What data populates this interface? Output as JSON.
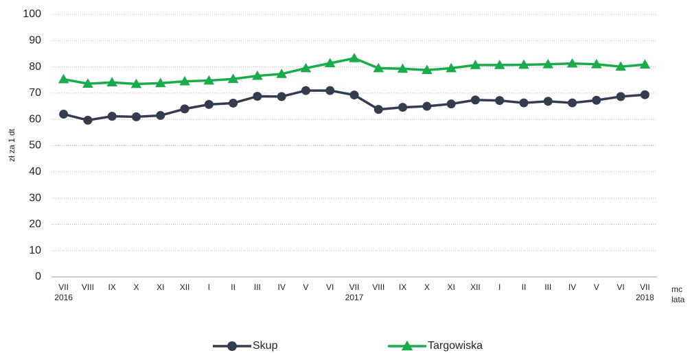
{
  "chart_data": {
    "type": "line",
    "y_label": "zł za 1 dt",
    "x_label": "mc",
    "x_label_secondary": "lata",
    "categories": [
      "VII",
      "VIII",
      "IX",
      "X",
      "XI",
      "XII",
      "I",
      "II",
      "III",
      "IV",
      "V",
      "VI",
      "VII",
      "VIII",
      "IX",
      "X",
      "XI",
      "XII",
      "I",
      "II",
      "III",
      "IV",
      "V",
      "VI",
      "VII"
    ],
    "category_years": [
      "2016",
      null,
      null,
      null,
      null,
      null,
      null,
      null,
      null,
      null,
      null,
      null,
      "2017",
      null,
      null,
      null,
      null,
      null,
      null,
      null,
      null,
      null,
      null,
      null,
      "2018"
    ],
    "series": [
      {
        "name": "Skup",
        "color": "#333d4f",
        "marker": "circle",
        "values": [
          62,
          59.7,
          61.2,
          61,
          61.5,
          64,
          65.7,
          66.2,
          68.8,
          68.7,
          71,
          71,
          69.3,
          63.8,
          64.6,
          65,
          65.9,
          67.4,
          67.2,
          66.3,
          66.9,
          66.3,
          67.3,
          68.7,
          69.4
        ]
      },
      {
        "name": "Targowiska",
        "color": "#1aab4b",
        "marker": "triangle",
        "values": [
          75.3,
          73.6,
          74.1,
          73.5,
          73.8,
          74.5,
          74.8,
          75.4,
          76.6,
          77.3,
          79.5,
          81.4,
          83.3,
          79.5,
          79.3,
          78.8,
          79.5,
          80.7,
          80.7,
          80.8,
          81,
          81.3,
          81,
          80.1,
          80.9
        ]
      }
    ],
    "ylim": [
      0,
      100
    ],
    "yticks": [
      0,
      10,
      20,
      30,
      40,
      50,
      60,
      70,
      80,
      90,
      100
    ],
    "grid": true,
    "legend": "bottom"
  }
}
